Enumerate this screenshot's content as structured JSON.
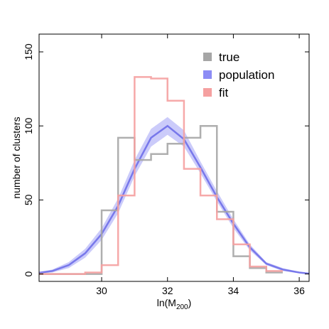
{
  "chart_data": {
    "type": "histogram",
    "xlabel": "ln(M",
    "xlabel_sub": "200",
    "xlabel_close": ")",
    "ylabel": "number of clusters",
    "xlim": [
      28.1,
      36.3
    ],
    "ylim": [
      -5,
      162
    ],
    "x_ticks": [
      30,
      32,
      34,
      36
    ],
    "x_tick_labels": [
      "30",
      "32",
      "34",
      "36"
    ],
    "y_ticks": [
      0,
      50,
      100,
      150
    ],
    "y_tick_labels": [
      "0",
      "50",
      "100",
      "150"
    ],
    "bin_edges": [
      28.0,
      28.5,
      29.0,
      29.5,
      30.0,
      30.5,
      31.0,
      31.5,
      32.0,
      32.5,
      33.0,
      33.5,
      34.0,
      34.5,
      35.0,
      35.5
    ],
    "legend_position": "top-right",
    "series": [
      {
        "name": "true",
        "color": "#a6a6a6",
        "kind": "step",
        "values": [
          0,
          0,
          0,
          0,
          43,
          92,
          77,
          81,
          88,
          92,
          100,
          42,
          12,
          4,
          1
        ]
      },
      {
        "name": "population",
        "color": "#8c8cf5",
        "kind": "band",
        "x": [
          28.0,
          28.5,
          29.0,
          29.5,
          30.0,
          30.5,
          31.0,
          31.5,
          32.0,
          32.5,
          33.0,
          33.5,
          34.0,
          34.5,
          35.0,
          35.5,
          36.0,
          36.3
        ],
        "mean": [
          0.5,
          2,
          6,
          14,
          27,
          46,
          71,
          92,
          100,
          91,
          72,
          52,
          34,
          18,
          7,
          3,
          1,
          0.3
        ],
        "lower": [
          0.2,
          1,
          4,
          11,
          23,
          41,
          66,
          86,
          94,
          86,
          68,
          49,
          31,
          16,
          6,
          2,
          0.5,
          0.1
        ],
        "upper": [
          1,
          3,
          8,
          17,
          31,
          51,
          77,
          98,
          106,
          97,
          76,
          56,
          37,
          20,
          8,
          4,
          1.5,
          0.6
        ]
      },
      {
        "name": "fit",
        "color": "#f5a0a0",
        "kind": "step",
        "values": [
          0,
          0,
          0,
          1,
          6,
          53,
          133,
          132,
          117,
          71,
          53,
          37,
          20,
          5,
          2
        ]
      }
    ]
  }
}
